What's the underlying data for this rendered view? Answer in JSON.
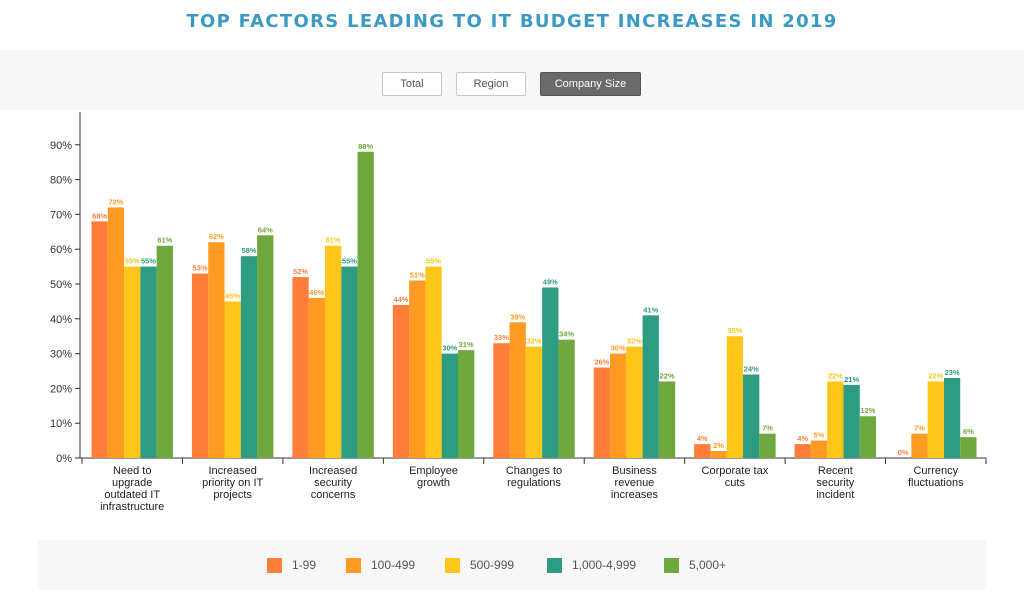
{
  "title": "TOP FACTORS LEADING TO IT BUDGET INCREASES IN 2019",
  "toolbar": {
    "buttons": [
      {
        "label": "Total",
        "active": false
      },
      {
        "label": "Region",
        "active": false
      },
      {
        "label": "Company Size",
        "active": true
      }
    ]
  },
  "colors": {
    "1-99": "#ff7f3a",
    "100-499": "#ff9b22",
    "500-999": "#ffc619",
    "1,000-4,999": "#2d9c80",
    "5,000+": "#6fa83f"
  },
  "chart_data": {
    "type": "bar",
    "title": "TOP FACTORS LEADING TO IT BUDGET INCREASES IN 2019",
    "categories": [
      [
        "Need to",
        "upgrade",
        "outdated IT",
        "infrastructure"
      ],
      [
        "Increased",
        "priority on IT",
        "projects"
      ],
      [
        "Increased",
        "security",
        "concerns"
      ],
      [
        "Employee",
        "growth"
      ],
      [
        "Changes to",
        "regulations"
      ],
      [
        "Business",
        "revenue",
        "increases"
      ],
      [
        "Corporate tax",
        "cuts"
      ],
      [
        "Recent",
        "security",
        "incident"
      ],
      [
        "Currency",
        "fluctuations"
      ]
    ],
    "series": [
      {
        "name": "1-99",
        "color": "#ff7f3a",
        "values": [
          68,
          53,
          52,
          44,
          33,
          26,
          4,
          4,
          0
        ]
      },
      {
        "name": "100-499",
        "color": "#ff9b22",
        "values": [
          72,
          62,
          46,
          51,
          39,
          30,
          2,
          5,
          7
        ]
      },
      {
        "name": "500-999",
        "color": "#ffc619",
        "values": [
          55,
          45,
          61,
          55,
          32,
          32,
          35,
          22,
          22
        ]
      },
      {
        "name": "1,000-4,999",
        "color": "#2d9c80",
        "values": [
          55,
          58,
          55,
          30,
          49,
          41,
          24,
          21,
          23
        ]
      },
      {
        "name": "5,000+",
        "color": "#6fa83f",
        "values": [
          61,
          64,
          88,
          31,
          34,
          22,
          7,
          12,
          6
        ]
      }
    ],
    "ylim": [
      0,
      100
    ],
    "yticks": [
      "0%",
      "10%",
      "20%",
      "30%",
      "40%",
      "50%",
      "60%",
      "70%",
      "80%",
      "90%"
    ],
    "value_suffix": "%",
    "grid": false,
    "legend_position": "bottom"
  }
}
